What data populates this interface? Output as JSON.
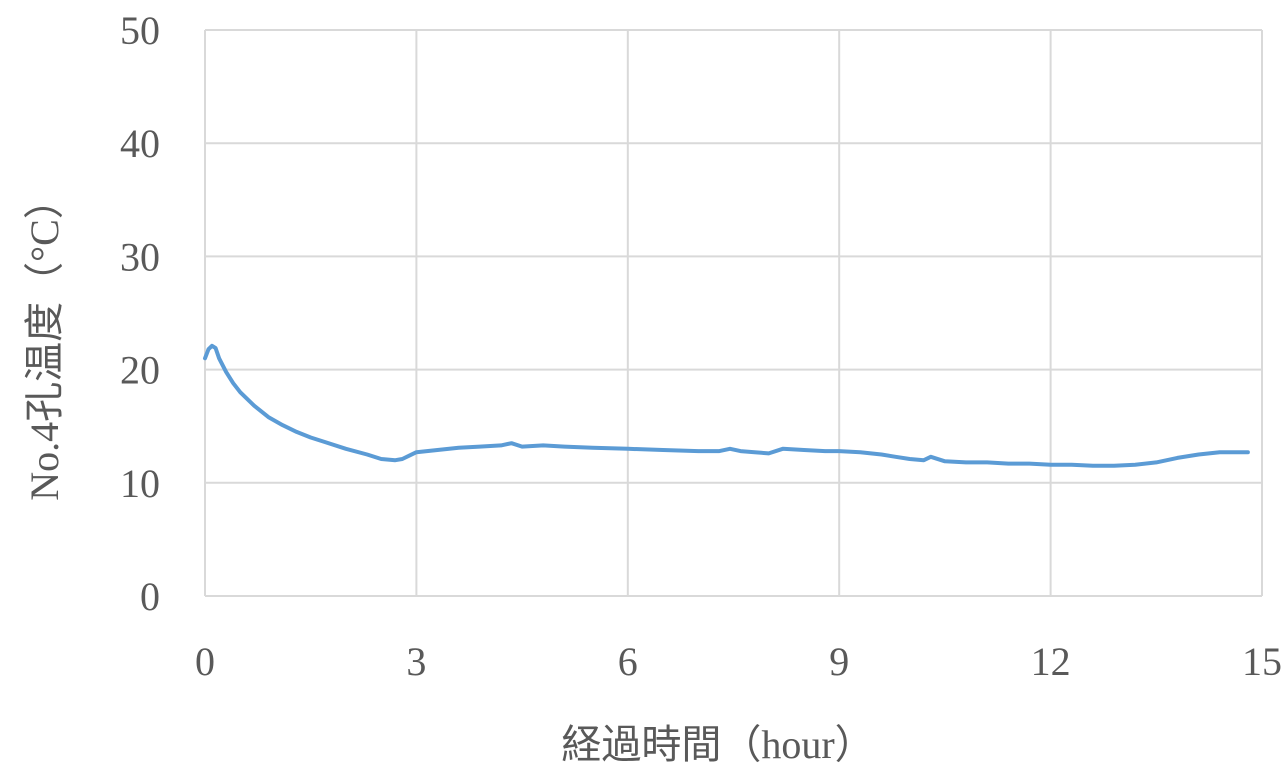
{
  "chart_data": {
    "type": "line",
    "xlabel": "経過時間（hour）",
    "ylabel": "No.4孔温度（°C）",
    "xlim": [
      0,
      15
    ],
    "ylim": [
      0,
      50
    ],
    "x_ticks": [
      0,
      3,
      6,
      9,
      12,
      15
    ],
    "y_ticks": [
      0,
      10,
      20,
      30,
      40,
      50
    ],
    "grid": true,
    "legend": "none",
    "series_color": "#5b9bd5",
    "series": [
      {
        "x": [
          0.0,
          0.05,
          0.1,
          0.15,
          0.2,
          0.3,
          0.4,
          0.5,
          0.7,
          0.9,
          1.1,
          1.3,
          1.5,
          1.7,
          2.0,
          2.3,
          2.5,
          2.7,
          2.8,
          2.9,
          3.0,
          3.3,
          3.6,
          3.9,
          4.2,
          4.35,
          4.5,
          4.8,
          5.1,
          5.5,
          6.0,
          6.5,
          7.0,
          7.3,
          7.45,
          7.6,
          7.8,
          8.0,
          8.2,
          8.5,
          8.8,
          9.0,
          9.3,
          9.6,
          9.8,
          10.0,
          10.2,
          10.3,
          10.5,
          10.8,
          11.1,
          11.4,
          11.7,
          12.0,
          12.3,
          12.6,
          12.9,
          13.2,
          13.5,
          13.8,
          14.1,
          14.4,
          14.7,
          14.8
        ],
        "values": [
          21.0,
          21.8,
          22.1,
          21.9,
          21.0,
          19.8,
          18.8,
          18.0,
          16.8,
          15.8,
          15.1,
          14.5,
          14.0,
          13.6,
          13.0,
          12.5,
          12.1,
          12.0,
          12.1,
          12.4,
          12.7,
          12.9,
          13.1,
          13.2,
          13.3,
          13.5,
          13.2,
          13.3,
          13.2,
          13.1,
          13.0,
          12.9,
          12.8,
          12.8,
          13.0,
          12.8,
          12.7,
          12.6,
          13.0,
          12.9,
          12.8,
          12.8,
          12.7,
          12.5,
          12.3,
          12.1,
          12.0,
          12.3,
          11.9,
          11.8,
          11.8,
          11.7,
          11.7,
          11.6,
          11.6,
          11.5,
          11.5,
          11.6,
          11.8,
          12.2,
          12.5,
          12.7,
          12.7,
          12.7
        ]
      }
    ]
  }
}
